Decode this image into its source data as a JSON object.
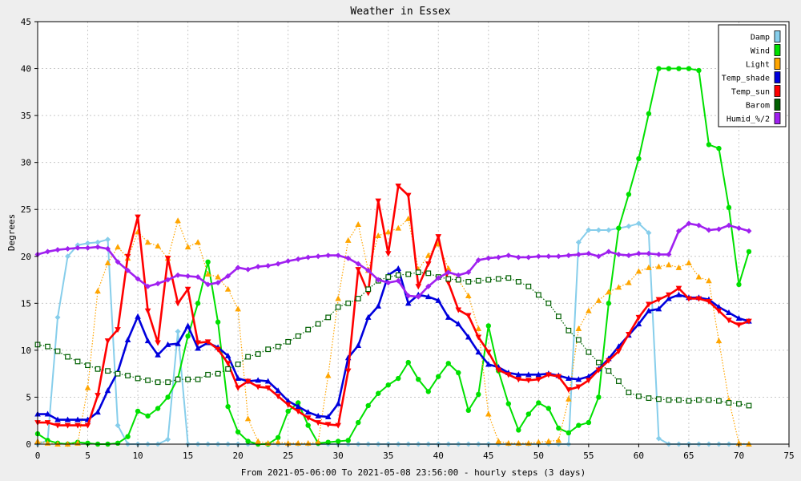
{
  "chart_data": {
    "type": "line",
    "title": "Weather in Essex",
    "ylabel": "Degrees",
    "xlabel": "From 2021-05-06:00 To 2021-05-08 23:56:00 - hourly steps (3 days)",
    "xlim": [
      0,
      75
    ],
    "ylim": [
      0,
      45
    ],
    "x_ticks": [
      0,
      5,
      10,
      15,
      20,
      25,
      30,
      35,
      40,
      45,
      50,
      55,
      60,
      65,
      70,
      75
    ],
    "y_ticks": [
      0,
      5,
      10,
      15,
      20,
      25,
      30,
      35,
      40,
      45
    ],
    "grid": true,
    "legend_position": "top-right",
    "x": [
      0,
      1,
      2,
      3,
      4,
      5,
      6,
      7,
      8,
      9,
      10,
      11,
      12,
      13,
      14,
      15,
      16,
      17,
      18,
      19,
      20,
      21,
      22,
      23,
      24,
      25,
      26,
      27,
      28,
      29,
      30,
      31,
      32,
      33,
      34,
      35,
      36,
      37,
      38,
      39,
      40,
      41,
      42,
      43,
      44,
      45,
      46,
      47,
      48,
      49,
      50,
      51,
      52,
      53,
      54,
      55,
      56,
      57,
      58,
      59,
      60,
      61,
      62,
      63,
      64,
      65,
      66,
      67,
      68,
      69,
      70,
      71
    ],
    "series": [
      {
        "name": "Damp",
        "color": "#87ceeb",
        "marker": "diamond",
        "line": "solid",
        "values": [
          0,
          0.4,
          13.5,
          20,
          21.2,
          21.4,
          21.5,
          21.8,
          2,
          0,
          0,
          0,
          0,
          0.5,
          12,
          0,
          0,
          0,
          0,
          0,
          0,
          0,
          0,
          0,
          0,
          0,
          0,
          0,
          0,
          0,
          0,
          0,
          0,
          0,
          0,
          0,
          0,
          0,
          0,
          0,
          0,
          0,
          0,
          0,
          0,
          0,
          0,
          0,
          0,
          0,
          0,
          0,
          0,
          0,
          21.5,
          22.8,
          22.8,
          22.8,
          23,
          23.2,
          23.5,
          22.5,
          0.6,
          0,
          0,
          0,
          0,
          0,
          0,
          0,
          0,
          0
        ]
      },
      {
        "name": "Wind",
        "color": "#00e000",
        "marker": "circle",
        "line": "solid",
        "values": [
          1.1,
          0.4,
          0.1,
          0,
          0.2,
          0.1,
          0,
          0,
          0.1,
          0.8,
          3.5,
          3,
          3.8,
          5,
          7,
          11.5,
          15,
          19.4,
          13,
          4,
          1.3,
          0.3,
          0,
          0,
          0.7,
          3.5,
          4.4,
          2,
          0.1,
          0.2,
          0.3,
          0.4,
          2.3,
          4.1,
          5.4,
          6.3,
          7,
          8.7,
          6.9,
          5.6,
          7.2,
          8.6,
          7.6,
          3.6,
          5.3,
          12.6,
          7.8,
          4.3,
          1.5,
          3.2,
          4.4,
          3.8,
          1.7,
          1.2,
          2,
          2.3,
          5,
          15,
          23,
          26.6,
          30.4,
          35.2,
          40,
          40,
          40,
          40,
          39.8,
          31.9,
          31.5,
          25.2,
          17,
          20.5
        ]
      },
      {
        "name": "Light",
        "color": "#ffa500",
        "marker": "triangle-up",
        "line": "dotted",
        "values": [
          0.3,
          0.1,
          0,
          0,
          0.1,
          6,
          16.3,
          19.3,
          21,
          19.8,
          22.6,
          21.5,
          21.1,
          19.8,
          23.8,
          21,
          21.5,
          18.1,
          17.8,
          16.5,
          14.4,
          2.7,
          0.3,
          0.1,
          0.2,
          0.1,
          0.1,
          0.1,
          0.2,
          7.3,
          15.5,
          21.7,
          23.4,
          18.5,
          22.2,
          22.6,
          23,
          24,
          18.6,
          20.1,
          21.3,
          18.7,
          17.5,
          15.8,
          12.3,
          3.2,
          0.3,
          0.1,
          0.1,
          0.1,
          0.2,
          0.3,
          0.4,
          4.8,
          12.3,
          14.2,
          15.3,
          16.2,
          16.7,
          17.2,
          18.4,
          18.8,
          18.9,
          19.1,
          18.8,
          19.3,
          17.8,
          17.4,
          11,
          4.7,
          0.1,
          0
        ]
      },
      {
        "name": "Temp_shade",
        "color": "#0000dd",
        "marker": "triangle-up",
        "line": "thick",
        "values": [
          3.2,
          3.2,
          2.6,
          2.6,
          2.6,
          2.6,
          3.4,
          5.7,
          7.7,
          11.1,
          13.6,
          11,
          9.5,
          10.6,
          10.7,
          12.6,
          10.2,
          10.8,
          10.3,
          9.4,
          7,
          6.7,
          6.8,
          6.7,
          5.7,
          4.6,
          4,
          3.4,
          3,
          2.9,
          4.3,
          9.2,
          10.5,
          13.5,
          14.7,
          18,
          18.7,
          15,
          15.9,
          15.7,
          15.3,
          13.5,
          12.8,
          11.4,
          9.8,
          8.5,
          8.2,
          7.6,
          7.4,
          7.4,
          7.4,
          7.5,
          7.3,
          7,
          6.9,
          7.2,
          8,
          9.1,
          10.4,
          11.6,
          12.8,
          14.2,
          14.4,
          15.5,
          15.9,
          15.6,
          15.6,
          15.4,
          14.6,
          14,
          13.4,
          13.1
        ]
      },
      {
        "name": "Temp_sun",
        "color": "#ff0000",
        "marker": "triangle-down",
        "line": "thick",
        "values": [
          2.3,
          2.3,
          2,
          2,
          2,
          2,
          5.2,
          11,
          12.2,
          20,
          24.2,
          14.2,
          10.8,
          19.8,
          15,
          16.5,
          10.8,
          10.9,
          10.1,
          8.6,
          6,
          6.7,
          6.1,
          6,
          5.1,
          4.2,
          3.5,
          2.8,
          2.3,
          2.1,
          2,
          7.8,
          18.6,
          16.1,
          25.9,
          20.3,
          27.5,
          26.5,
          16.8,
          19.2,
          22.1,
          17.2,
          14.3,
          13.7,
          11.4,
          9.8,
          7.9,
          7.4,
          6.9,
          6.8,
          6.9,
          7.4,
          7.2,
          5.8,
          6.1,
          6.8,
          7.9,
          8.9,
          9.9,
          11.7,
          13.5,
          14.9,
          15.4,
          15.9,
          16.6,
          15.5,
          15.5,
          15.2,
          14.2,
          13.2,
          12.7,
          13.1
        ]
      },
      {
        "name": "Barom",
        "color": "#006000",
        "marker": "square",
        "line": "dotted",
        "values": [
          10.6,
          10.4,
          9.9,
          9.3,
          8.8,
          8.4,
          8,
          7.8,
          7.5,
          7.3,
          7,
          6.8,
          6.6,
          6.6,
          6.9,
          6.9,
          6.9,
          7.4,
          7.5,
          8,
          8.5,
          9.3,
          9.6,
          10.1,
          10.4,
          10.9,
          11.5,
          12.2,
          12.8,
          13.5,
          14.6,
          15,
          15.5,
          16.5,
          17.4,
          17.8,
          18,
          18.1,
          18.3,
          18.2,
          17.8,
          17.6,
          17.5,
          17.3,
          17.4,
          17.5,
          17.6,
          17.7,
          17.3,
          16.8,
          15.9,
          15,
          13.6,
          12.1,
          11.1,
          9.8,
          8.7,
          7.8,
          6.7,
          5.5,
          5.1,
          4.9,
          4.8,
          4.7,
          4.7,
          4.6,
          4.7,
          4.7,
          4.6,
          4.4,
          4.3,
          4.1
        ]
      },
      {
        "name": "Humid_%/2",
        "color": "#a020f0",
        "marker": "diamond",
        "line": "thick",
        "values": [
          20.2,
          20.5,
          20.7,
          20.8,
          20.9,
          20.9,
          21,
          20.8,
          19.4,
          18.5,
          17.6,
          16.8,
          17.1,
          17.5,
          18,
          17.9,
          17.8,
          17,
          17.2,
          17.9,
          18.8,
          18.6,
          18.9,
          19,
          19.2,
          19.5,
          19.7,
          19.9,
          20,
          20.1,
          20.1,
          19.8,
          19.2,
          18.5,
          17.5,
          17.2,
          17.4,
          15.8,
          15.7,
          16.8,
          17.7,
          18.3,
          18,
          18.3,
          19.6,
          19.8,
          19.9,
          20.1,
          19.9,
          19.9,
          20,
          20,
          20,
          20.1,
          20.2,
          20.3,
          20,
          20.5,
          20.2,
          20.1,
          20.3,
          20.3,
          20.2,
          20.2,
          22.7,
          23.5,
          23.3,
          22.8,
          22.9,
          23.3,
          23,
          22.7
        ]
      }
    ]
  }
}
